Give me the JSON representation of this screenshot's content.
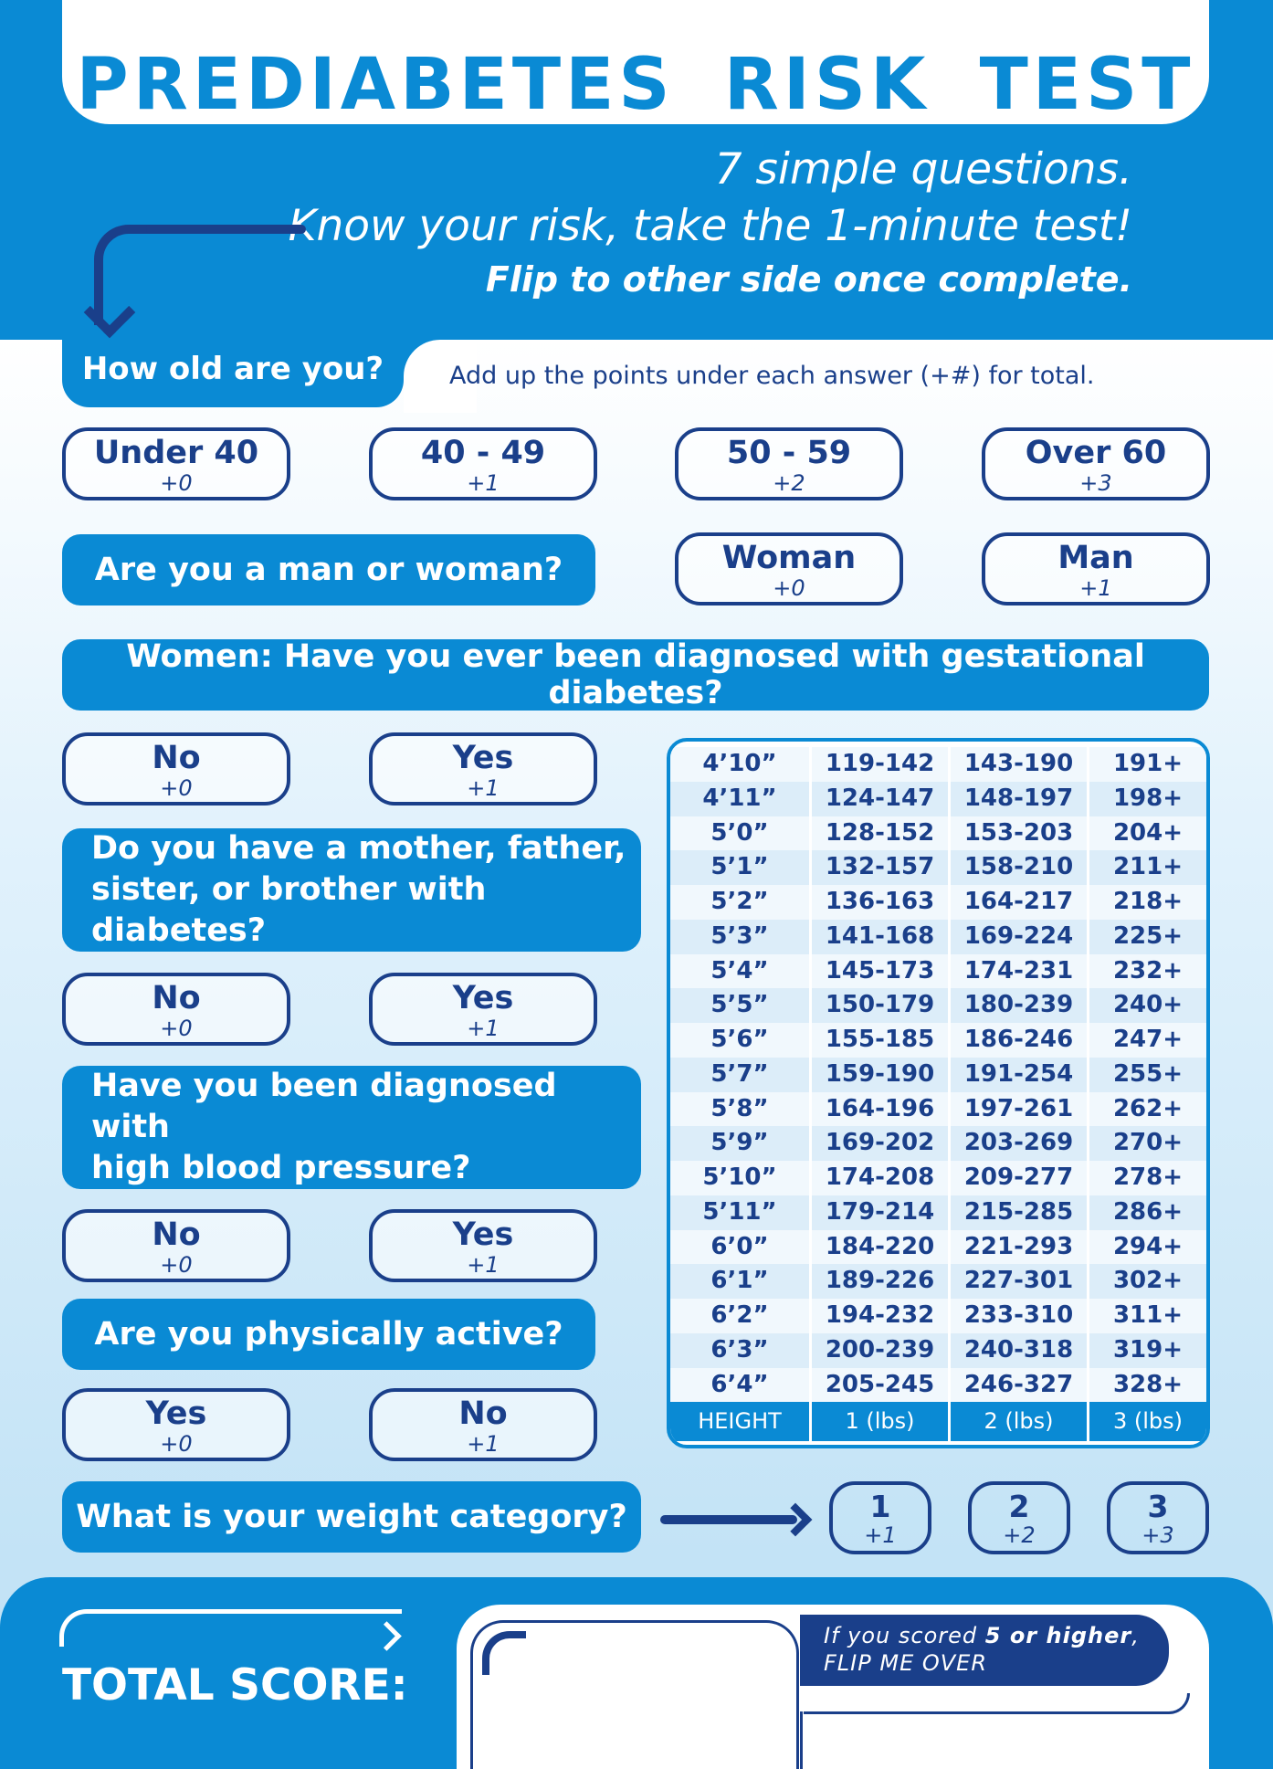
{
  "header": {
    "title": "PREDIABETES RISK TEST",
    "line1": "7 simple questions.",
    "line2": "Know your risk, take the 1-minute test!",
    "line3": "Flip to other side once complete."
  },
  "instruction": "Add up the points under each answer (+#) for total.",
  "q_age": {
    "question": "How old are you?",
    "options": [
      {
        "label": "Under 40",
        "points": "+0"
      },
      {
        "label": "40 - 49",
        "points": "+1"
      },
      {
        "label": "50 - 59",
        "points": "+2"
      },
      {
        "label": "Over 60",
        "points": "+3"
      }
    ]
  },
  "q_sex": {
    "question": "Are you a man or woman?",
    "options": [
      {
        "label": "Woman",
        "points": "+0"
      },
      {
        "label": "Man",
        "points": "+1"
      }
    ]
  },
  "q_gestational": {
    "question": "Women: Have you ever been diagnosed with gestational diabetes?",
    "options": [
      {
        "label": "No",
        "points": "+0"
      },
      {
        "label": "Yes",
        "points": "+1"
      }
    ]
  },
  "q_family": {
    "question_line1": "Do you have a mother, father,",
    "question_line2": "sister, or brother with diabetes?",
    "options": [
      {
        "label": "No",
        "points": "+0"
      },
      {
        "label": "Yes",
        "points": "+1"
      }
    ]
  },
  "q_bp": {
    "question_line1": "Have you been diagnosed with",
    "question_line2": "high blood pressure?",
    "options": [
      {
        "label": "No",
        "points": "+0"
      },
      {
        "label": "Yes",
        "points": "+1"
      }
    ]
  },
  "q_active": {
    "question": "Are you physically active?",
    "options": [
      {
        "label": "Yes",
        "points": "+0"
      },
      {
        "label": "No",
        "points": "+1"
      }
    ]
  },
  "q_weight": {
    "question": "What is your weight category?",
    "options": [
      {
        "label": "1",
        "points": "+1"
      },
      {
        "label": "2",
        "points": "+2"
      },
      {
        "label": "3",
        "points": "+3"
      }
    ]
  },
  "weight_table": {
    "headers": [
      "HEIGHT",
      "1 (lbs)",
      "2 (lbs)",
      "3 (lbs)"
    ],
    "rows": [
      [
        "4’10”",
        "119-142",
        "143-190",
        "191+"
      ],
      [
        "4’11”",
        "124-147",
        "148-197",
        "198+"
      ],
      [
        "5’0”",
        "128-152",
        "153-203",
        "204+"
      ],
      [
        "5’1”",
        "132-157",
        "158-210",
        "211+"
      ],
      [
        "5’2”",
        "136-163",
        "164-217",
        "218+"
      ],
      [
        "5’3”",
        "141-168",
        "169-224",
        "225+"
      ],
      [
        "5’4”",
        "145-173",
        "174-231",
        "232+"
      ],
      [
        "5’5”",
        "150-179",
        "180-239",
        "240+"
      ],
      [
        "5’6”",
        "155-185",
        "186-246",
        "247+"
      ],
      [
        "5’7”",
        "159-190",
        "191-254",
        "255+"
      ],
      [
        "5’8”",
        "164-196",
        "197-261",
        "262+"
      ],
      [
        "5’9”",
        "169-202",
        "203-269",
        "270+"
      ],
      [
        "5’10”",
        "174-208",
        "209-277",
        "278+"
      ],
      [
        "5’11”",
        "179-214",
        "215-285",
        "286+"
      ],
      [
        "6’0”",
        "184-220",
        "221-293",
        "294+"
      ],
      [
        "6’1”",
        "189-226",
        "227-301",
        "302+"
      ],
      [
        "6’2”",
        "194-232",
        "233-310",
        "311+"
      ],
      [
        "6’3”",
        "200-239",
        "240-318",
        "319+"
      ],
      [
        "6’4”",
        "205-245",
        "246-327",
        "328+"
      ]
    ]
  },
  "footer": {
    "total_label": "TOTAL SCORE:",
    "flip_pre": "If you scored ",
    "flip_bold": "5 or higher",
    "flip_post": ",",
    "flip_line2": "FLIP ME OVER"
  },
  "colors": {
    "primary": "#0a8ad4",
    "navy": "#1a3f8a"
  }
}
